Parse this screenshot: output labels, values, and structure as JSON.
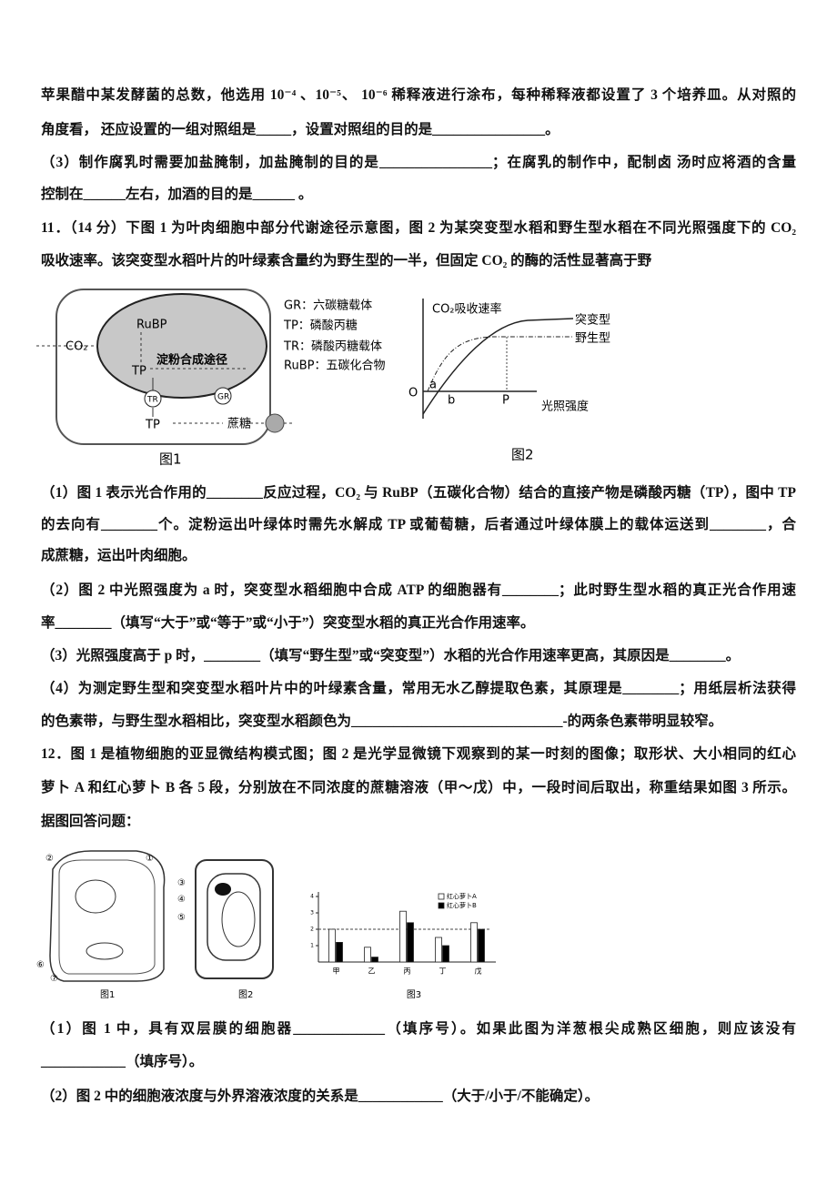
{
  "q10": {
    "lines": [
      "苹果醋中某发酵菌的总数，他选用 10⁻⁴ 、10⁻⁵、 10⁻⁶ 稀释液进行涂布，每种稀释液都设置了 3 个培养皿。从对照的",
      "角度看， 还应设置的一组对照组是_____，设置对照组的目的是________________。",
      "（3）制作腐乳时需要加盐腌制，加盐腌制的目的是________________；在腐乳的制作中，配制卤 汤时应将酒的含量",
      "控制在______左右，加酒的目的是______ 。"
    ]
  },
  "q11": {
    "stem": [
      "11．（14 分）下图 1 为叶肉细胞中部分代谢途径示意图，图 2 为某突变型水稻和野生型水稻在不同光照强度下的 CO₂",
      "吸收速率。该突变型水稻叶片的叶绿素含量约为野生型的一半，但固定 CO₂ 的酶的活性显著高于野"
    ],
    "figure1": {
      "labels": [
        "RuBP",
        "CO₂",
        "TP",
        "淀粉合成途径",
        "TR",
        "GR",
        "TP",
        "蔗糖"
      ],
      "legend": [
        "GR：六碳糖载体",
        "TP：磷酸丙糖",
        "TR：磷酸丙糖载体",
        "RuBP：五碳化合物"
      ],
      "caption": "图1"
    },
    "figure2": {
      "y_label": "CO₂吸收速率",
      "x_label": "光照强度",
      "curves": [
        "突变型",
        "野生型"
      ],
      "points": [
        "O",
        "a",
        "b",
        "P"
      ],
      "caption": "图2"
    },
    "parts": [
      "（1）图 1 表示光合作用的________反应过程，CO₂ 与 RuBP（五碳化合物）结合的直接产物是磷酸丙糖（TP），图中 TP",
      "的去向有________个。淀粉运出叶绿体时需先水解成 TP 或葡萄糖，后者通过叶绿体膜上的载体运送到________，合",
      "成蔗糖，运出叶肉细胞。",
      "（2）图 2 中光照强度为 a 时，突变型水稻细胞中合成 ATP 的细胞器有________；此时野生型水稻的真正光合作用速",
      "率________（填写“大于”或“等于”或“小于”）突变型水稻的真正光合作用速率。",
      "（3）光照强度高于 p 时，________（填写“野生型”或“突变型”）水稻的光合作用速率更高，其原因是________。",
      "（4）为测定野生型和突变型水稻叶片中的叶绿素含量，常用无水乙醇提取色素，其原理是________；用纸层析法获得",
      "的色素带，与野生型水稻相比，突变型水稻颜色为______________________________-的两条色素带明显较窄。"
    ]
  },
  "q12": {
    "stem": [
      "12．图 1 是植物细胞的亚显微结构模式图；图 2 是光学显微镜下观察到的某一时刻的图像；取形状、大小相同的红心",
      "萝卜 A 和红心萝卜 B 各 5 段，分别放在不同浓度的蔗糖溶液（甲～戊）中，一段时间后取出，称重结果如图 3 所示。",
      "据图回答问题："
    ],
    "figure1": {
      "labels": [
        "①",
        "②",
        "③",
        "④",
        "⑤",
        "⑥",
        "⑦"
      ],
      "caption": "图1"
    },
    "figure2": {
      "caption": "图2"
    },
    "figure3": {
      "type": "bar",
      "categories": [
        "甲",
        "乙",
        "丙",
        "丁",
        "戊"
      ],
      "series": [
        {
          "name": "红心萝卜A",
          "color": "#ffffff",
          "values": [
            2.0,
            0.9,
            3.1,
            1.5,
            2.4
          ]
        },
        {
          "name": "红心萝卜B",
          "color": "#000000",
          "values": [
            1.2,
            0.3,
            2.4,
            1.0,
            2.0
          ]
        }
      ],
      "ylim": [
        0,
        4
      ],
      "yticks": [
        1,
        2,
        3,
        4
      ],
      "caption": "图3"
    },
    "parts": [
      "（1）图 1 中，具有双层膜的细胞器_____________（填序号）。如果此图为洋葱根尖成熟区细胞，则应该没有",
      "____________（填序号）。",
      "（2）图 2 中的细胞液浓度与外界溶液浓度的关系是____________（大于/小于/不能确定）。"
    ]
  }
}
